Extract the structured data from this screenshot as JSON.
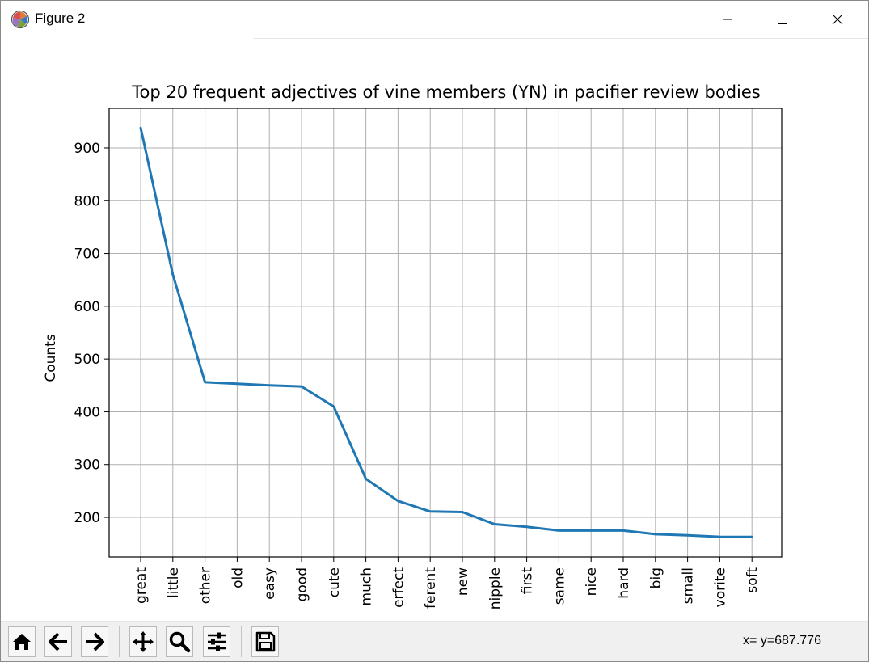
{
  "window": {
    "title": "Figure 2",
    "icons": [
      "matplotlib-icon",
      "minimize-icon",
      "maximize-icon",
      "close-icon"
    ]
  },
  "toolbar": {
    "buttons": [
      {
        "name": "home-icon"
      },
      {
        "name": "back-arrow-icon"
      },
      {
        "name": "forward-arrow-icon"
      },
      {
        "name": "pan-icon"
      },
      {
        "name": "zoom-icon"
      },
      {
        "name": "configure-subplots-icon"
      },
      {
        "name": "save-icon"
      }
    ],
    "coordinates": "x= y=687.776"
  },
  "chart_data": {
    "type": "line",
    "title": "Top 20 frequent adjectives of vine members (YN) in pacifier review bodies",
    "xlabel": "",
    "ylabel": "Counts",
    "categories": [
      "great",
      "little",
      "other",
      "old",
      "easy",
      "good",
      "cute",
      "much",
      "erfect",
      "ferent",
      "new",
      "nipple",
      "first",
      "same",
      "nice",
      "hard",
      "big",
      "small",
      "vorite",
      "soft"
    ],
    "values": [
      938,
      660,
      456,
      453,
      450,
      448,
      410,
      273,
      231,
      211,
      210,
      187,
      182,
      175,
      175,
      175,
      168,
      166,
      163,
      163
    ],
    "yticks": [
      200,
      300,
      400,
      500,
      600,
      700,
      800,
      900
    ],
    "ylim": [
      125,
      975
    ],
    "grid": true,
    "line_color": "#1f77b4"
  }
}
